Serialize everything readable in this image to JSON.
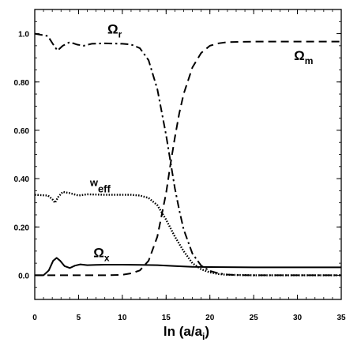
{
  "chart_data": {
    "type": "line",
    "xlabel_main": "ln (a/a",
    "xlabel_sub": "i",
    "xlabel_close": ")",
    "ylabel": "",
    "xlim": [
      0,
      35
    ],
    "ylim": [
      -0.1,
      1.1
    ],
    "x_ticks": [
      0,
      5,
      10,
      15,
      20,
      25,
      30,
      35
    ],
    "x_tick_labels": [
      "0",
      "5",
      "10",
      "15",
      "20",
      "25",
      "30",
      "35"
    ],
    "y_ticks": [
      0.0,
      0.2,
      0.4,
      0.6,
      0.8,
      1.0
    ],
    "y_tick_labels": [
      "0.0",
      "0.20",
      "0.40",
      "0.60",
      "0.80",
      "1.0"
    ],
    "grid": false,
    "legend": "inline labels",
    "series": [
      {
        "name": "Ω_r",
        "label_main": "Ω",
        "label_sub": "r",
        "style": "dash-dot",
        "x": [
          0,
          1.5,
          2.2,
          2.6,
          3.2,
          4.0,
          4.8,
          5.6,
          6.5,
          8,
          10,
          11,
          12,
          13,
          14,
          15,
          15.5,
          16,
          16.5,
          17,
          18,
          19,
          20,
          21,
          22,
          23,
          25,
          35
        ],
        "y": [
          1.0,
          0.99,
          0.95,
          0.93,
          0.95,
          0.965,
          0.955,
          0.95,
          0.958,
          0.96,
          0.958,
          0.955,
          0.94,
          0.89,
          0.77,
          0.58,
          0.47,
          0.36,
          0.27,
          0.19,
          0.09,
          0.04,
          0.018,
          0.008,
          0.003,
          0.001,
          0.0,
          0.0
        ]
      },
      {
        "name": "Ω_m",
        "label_main": "Ω",
        "label_sub": "m",
        "style": "dashed",
        "x": [
          0,
          5,
          8,
          10,
          11,
          12,
          13,
          14,
          15,
          15.5,
          16,
          16.5,
          17,
          18,
          19,
          20,
          21,
          22,
          25,
          35
        ],
        "y": [
          0.0,
          0.0,
          0.0,
          0.002,
          0.008,
          0.02,
          0.06,
          0.16,
          0.34,
          0.46,
          0.57,
          0.67,
          0.75,
          0.86,
          0.92,
          0.95,
          0.96,
          0.965,
          0.967,
          0.967
        ]
      },
      {
        "name": "w_eff",
        "label_main": "w",
        "label_sub": "eff",
        "style": "dotted",
        "x": [
          0,
          1.5,
          2.0,
          2.3,
          2.7,
          3.2,
          4.0,
          5.0,
          6.0,
          8,
          10,
          11,
          12,
          13,
          14,
          15,
          16,
          17,
          18,
          19,
          20,
          21,
          22,
          25,
          35
        ],
        "y": [
          0.333,
          0.33,
          0.315,
          0.3,
          0.325,
          0.345,
          0.34,
          0.33,
          0.335,
          0.333,
          0.333,
          0.333,
          0.33,
          0.32,
          0.29,
          0.23,
          0.16,
          0.1,
          0.05,
          0.025,
          0.012,
          0.005,
          0.002,
          0.0,
          0.0
        ]
      },
      {
        "name": "Ω_x",
        "label_main": "Ω",
        "label_sub": "x",
        "style": "solid",
        "x": [
          0,
          1.0,
          1.6,
          2.1,
          2.5,
          2.9,
          3.4,
          4.0,
          4.6,
          5.2,
          6.0,
          7.0,
          8,
          10,
          12,
          14,
          16,
          18,
          20,
          25,
          35
        ],
        "y": [
          0.0,
          0.0,
          0.02,
          0.06,
          0.072,
          0.06,
          0.038,
          0.03,
          0.04,
          0.045,
          0.042,
          0.043,
          0.044,
          0.044,
          0.043,
          0.042,
          0.038,
          0.035,
          0.034,
          0.033,
          0.033
        ]
      }
    ],
    "label_positions_data": [
      {
        "series": 0,
        "x": 8.3,
        "y": 1.0
      },
      {
        "series": 1,
        "x": 29.6,
        "y": 0.89
      },
      {
        "series": 2,
        "x": 6.3,
        "y": 0.37
      },
      {
        "series": 3,
        "x": 6.7,
        "y": 0.075
      }
    ]
  }
}
